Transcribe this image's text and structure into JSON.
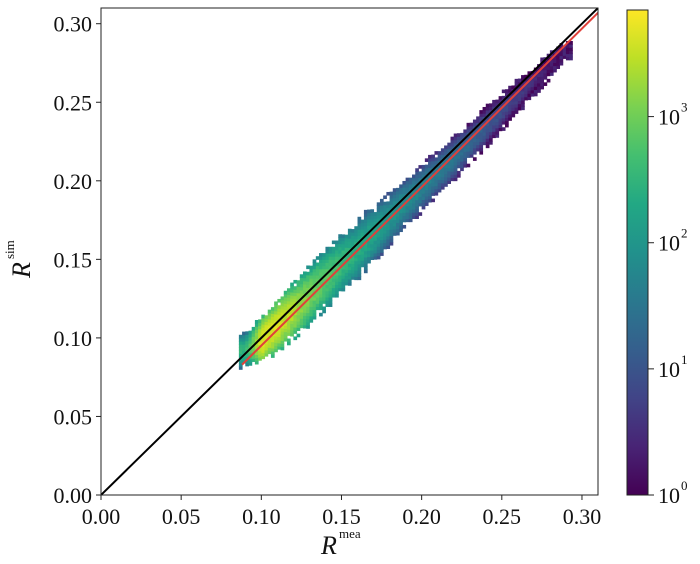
{
  "chart_data": {
    "type": "heatmap",
    "subtype": "2d-histogram",
    "xlabel": {
      "base": "R",
      "superscript": "mea"
    },
    "ylabel": {
      "base": "R",
      "superscript": "sim"
    },
    "xlim": [
      0.0,
      0.31
    ],
    "ylim": [
      0.0,
      0.31
    ],
    "x_ticks": [
      "0.00",
      "0.05",
      "0.10",
      "0.15",
      "0.20",
      "0.25",
      "0.30"
    ],
    "y_ticks": [
      "0.00",
      "0.05",
      "0.10",
      "0.15",
      "0.20",
      "0.25",
      "0.30"
    ],
    "x_tick_values": [
      0.0,
      0.05,
      0.1,
      0.15,
      0.2,
      0.25,
      0.3
    ],
    "y_tick_values": [
      0.0,
      0.05,
      0.1,
      0.15,
      0.2,
      0.25,
      0.3
    ],
    "bin_width": 0.002,
    "colormap": "viridis",
    "colorbar": {
      "scale": "log",
      "range": [
        1,
        7000
      ],
      "ticks": [
        {
          "base": "10",
          "exp": "0",
          "value": 1
        },
        {
          "base": "10",
          "exp": "1",
          "value": 10
        },
        {
          "base": "10",
          "exp": "2",
          "value": 100
        },
        {
          "base": "10",
          "exp": "3",
          "value": 1000
        }
      ]
    },
    "density_ridge": [
      {
        "x": 0.09,
        "y_center": 0.092,
        "half_width": 0.01,
        "peak_count": 300
      },
      {
        "x": 0.1,
        "y_center": 0.098,
        "half_width": 0.014,
        "peak_count": 5000
      },
      {
        "x": 0.11,
        "y_center": 0.108,
        "half_width": 0.016,
        "peak_count": 4000
      },
      {
        "x": 0.12,
        "y_center": 0.117,
        "half_width": 0.017,
        "peak_count": 2500
      },
      {
        "x": 0.13,
        "y_center": 0.127,
        "half_width": 0.018,
        "peak_count": 1200
      },
      {
        "x": 0.14,
        "y_center": 0.137,
        "half_width": 0.018,
        "peak_count": 700
      },
      {
        "x": 0.15,
        "y_center": 0.147,
        "half_width": 0.018,
        "peak_count": 400
      },
      {
        "x": 0.16,
        "y_center": 0.156,
        "half_width": 0.018,
        "peak_count": 250
      },
      {
        "x": 0.17,
        "y_center": 0.166,
        "half_width": 0.017,
        "peak_count": 160
      },
      {
        "x": 0.18,
        "y_center": 0.176,
        "half_width": 0.016,
        "peak_count": 100
      },
      {
        "x": 0.19,
        "y_center": 0.186,
        "half_width": 0.015,
        "peak_count": 70
      },
      {
        "x": 0.2,
        "y_center": 0.195,
        "half_width": 0.014,
        "peak_count": 50
      },
      {
        "x": 0.21,
        "y_center": 0.205,
        "half_width": 0.013,
        "peak_count": 40
      },
      {
        "x": 0.22,
        "y_center": 0.214,
        "half_width": 0.013,
        "peak_count": 30
      },
      {
        "x": 0.23,
        "y_center": 0.224,
        "half_width": 0.012,
        "peak_count": 20
      },
      {
        "x": 0.24,
        "y_center": 0.234,
        "half_width": 0.012,
        "peak_count": 12
      },
      {
        "x": 0.25,
        "y_center": 0.244,
        "half_width": 0.011,
        "peak_count": 8
      },
      {
        "x": 0.26,
        "y_center": 0.254,
        "half_width": 0.01,
        "peak_count": 5
      },
      {
        "x": 0.27,
        "y_center": 0.264,
        "half_width": 0.009,
        "peak_count": 3
      },
      {
        "x": 0.28,
        "y_center": 0.274,
        "half_width": 0.008,
        "peak_count": 2
      },
      {
        "x": 0.29,
        "y_center": 0.283,
        "half_width": 0.006,
        "peak_count": 1
      }
    ],
    "lines": [
      {
        "name": "identity",
        "color": "#000000",
        "x": [
          0.0,
          0.31
        ],
        "y": [
          0.0,
          0.31
        ]
      },
      {
        "name": "fit",
        "color": "#e0403a",
        "x": [
          0.088,
          0.31
        ],
        "y": [
          0.083,
          0.307
        ]
      }
    ]
  }
}
